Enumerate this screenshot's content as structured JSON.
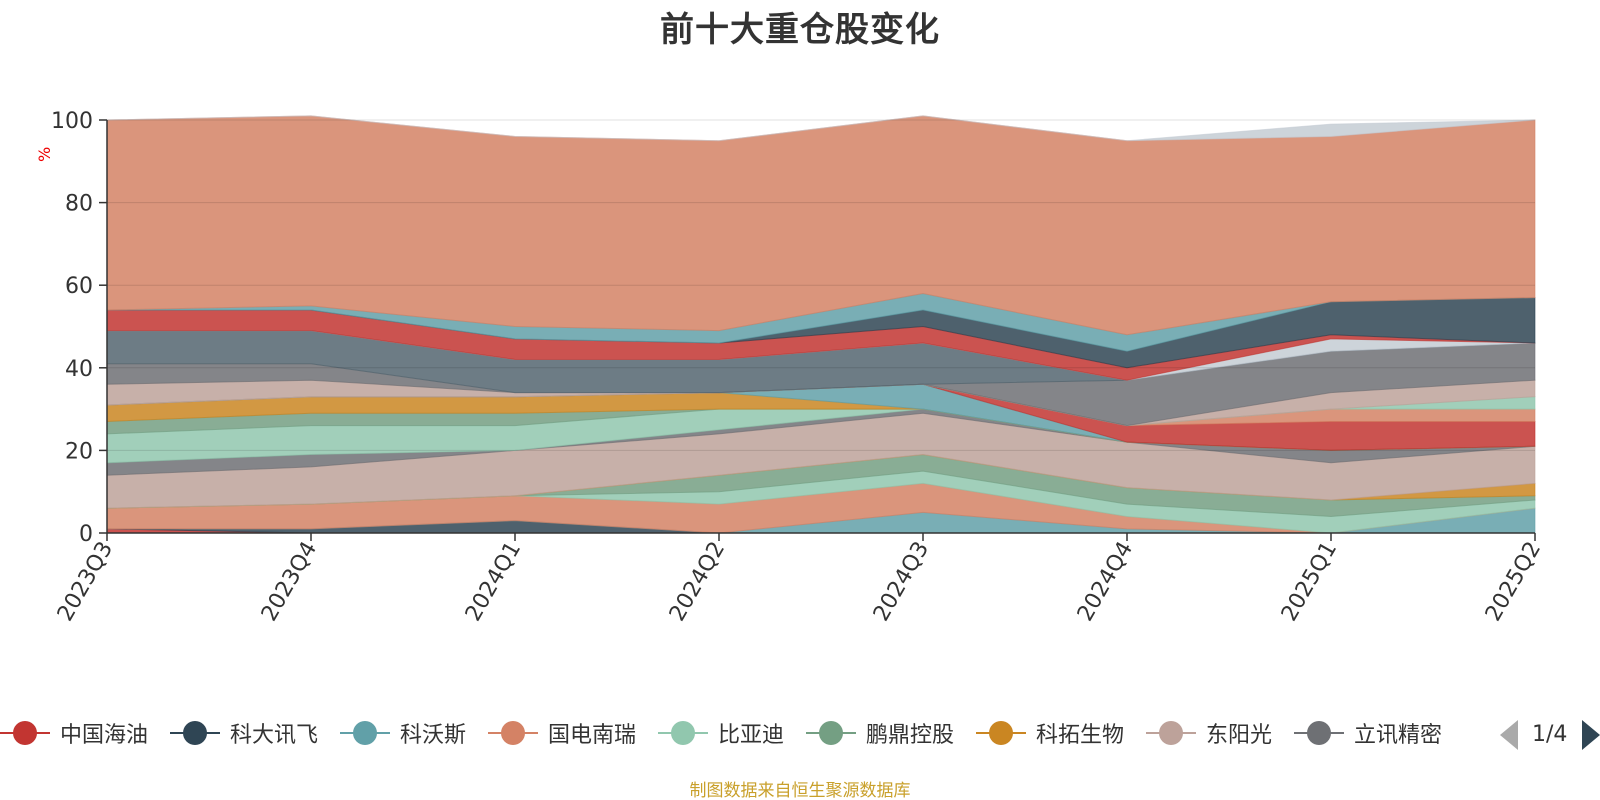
{
  "chart_data": {
    "type": "area",
    "title": "前十大重仓股变化",
    "ylabel": "%",
    "ylim": [
      0,
      100
    ],
    "yticks": [
      0,
      20,
      40,
      60,
      80,
      100
    ],
    "x": [
      "2023Q3",
      "2023Q4",
      "2024Q1",
      "2024Q2",
      "2024Q3",
      "2024Q4",
      "2025Q1",
      "2025Q2"
    ],
    "grid": true,
    "legend_position": "bottom",
    "legend_page": "1/4",
    "series": [
      {
        "name": "中国海油",
        "color": "#c23531",
        "values": [
          1,
          0,
          0,
          0,
          0,
          0,
          0,
          0
        ]
      },
      {
        "name": "科大讯飞",
        "color": "#2f4554",
        "values": [
          0,
          1,
          3,
          0,
          0,
          0,
          0,
          0
        ]
      },
      {
        "name": "科沃斯",
        "color": "#61a0a8",
        "values": [
          0,
          0,
          0,
          0,
          5,
          1,
          0,
          6
        ]
      },
      {
        "name": "国电南瑞",
        "color": "#d48265",
        "values": [
          5,
          6,
          6,
          7,
          7,
          3,
          0,
          0
        ]
      },
      {
        "name": "比亚迪",
        "color": "#91c7ae",
        "values": [
          0,
          0,
          0,
          3,
          3,
          3,
          4,
          2
        ]
      },
      {
        "name": "鹏鼎控股",
        "color": "#749f83",
        "values": [
          0,
          0,
          0,
          4,
          4,
          4,
          4,
          1
        ]
      },
      {
        "name": "科拓生物",
        "color": "#ca8622",
        "values": [
          0,
          0,
          0,
          0,
          0,
          0,
          0,
          3
        ]
      },
      {
        "name": "东阳光",
        "color": "#bda29a",
        "values": [
          8,
          9,
          11,
          10,
          10,
          11,
          9,
          9
        ]
      },
      {
        "name": "立讯精密",
        "color": "#6e7074",
        "values": [
          3,
          3,
          0,
          1,
          1,
          0,
          3,
          0
        ]
      },
      {
        "name": "",
        "color": "#91c7ae",
        "values": [
          7,
          7,
          6,
          5,
          0,
          0,
          0,
          0
        ]
      },
      {
        "name": "",
        "color": "#749f83",
        "values": [
          3,
          3,
          3,
          0,
          0,
          0,
          0,
          0
        ]
      },
      {
        "name": "",
        "color": "#ca8622",
        "values": [
          4,
          4,
          4,
          4,
          0,
          0,
          0,
          0
        ]
      },
      {
        "name": "",
        "color": "#61a0a8",
        "values": [
          0,
          0,
          0,
          0,
          6,
          0,
          0,
          0
        ]
      },
      {
        "name": "",
        "color": "#c23531",
        "values": [
          0,
          0,
          0,
          0,
          0,
          4,
          7,
          6
        ]
      },
      {
        "name": "",
        "color": "#d48265",
        "values": [
          0,
          0,
          0,
          0,
          0,
          0,
          3,
          3
        ]
      },
      {
        "name": "",
        "color": "#91c7ae",
        "values": [
          0,
          0,
          0,
          0,
          0,
          0,
          0,
          3
        ]
      },
      {
        "name": "",
        "color": "#bda29a",
        "values": [
          5,
          4,
          1,
          0,
          0,
          0,
          4,
          4
        ]
      },
      {
        "name": "",
        "color": "#6e7074",
        "values": [
          5,
          4,
          0,
          0,
          0,
          11,
          10,
          9
        ]
      },
      {
        "name": "",
        "color": "#546570",
        "values": [
          8,
          8,
          8,
          8,
          10,
          0,
          0,
          0
        ]
      },
      {
        "name": "",
        "color": "#c4ccd3",
        "values": [
          0,
          0,
          0,
          0,
          0,
          0,
          3,
          0
        ]
      },
      {
        "name": "",
        "color": "#c23531",
        "values": [
          5,
          5,
          5,
          4,
          4,
          3,
          1,
          0
        ]
      },
      {
        "name": "",
        "color": "#2f4554",
        "values": [
          0,
          0,
          0,
          0,
          4,
          4,
          8,
          11
        ]
      },
      {
        "name": "",
        "color": "#61a0a8",
        "values": [
          0,
          1,
          3,
          3,
          4,
          4,
          0,
          0
        ]
      },
      {
        "name": "",
        "color": "#d48265",
        "values": [
          46,
          46,
          46,
          46,
          43,
          47,
          40,
          43
        ]
      },
      {
        "name": "",
        "color": "#c4ccd3",
        "values": [
          0,
          0,
          0,
          0,
          0,
          0,
          3,
          0
        ]
      }
    ],
    "series_opacity": 0.85
  },
  "legend": {
    "items": [
      {
        "label": "中国海油",
        "color": "#c23531"
      },
      {
        "label": "科大讯飞",
        "color": "#2f4554"
      },
      {
        "label": "科沃斯",
        "color": "#61a0a8"
      },
      {
        "label": "国电南瑞",
        "color": "#d48265"
      },
      {
        "label": "比亚迪",
        "color": "#91c7ae"
      },
      {
        "label": "鹏鼎控股",
        "color": "#749f83"
      },
      {
        "label": "科拓生物",
        "color": "#ca8622"
      },
      {
        "label": "东阳光",
        "color": "#bda29a"
      },
      {
        "label": "立讯精密",
        "color": "#6e7074"
      }
    ],
    "page_text": "1/4"
  },
  "source_note": "制图数据来自恒生聚源数据库"
}
